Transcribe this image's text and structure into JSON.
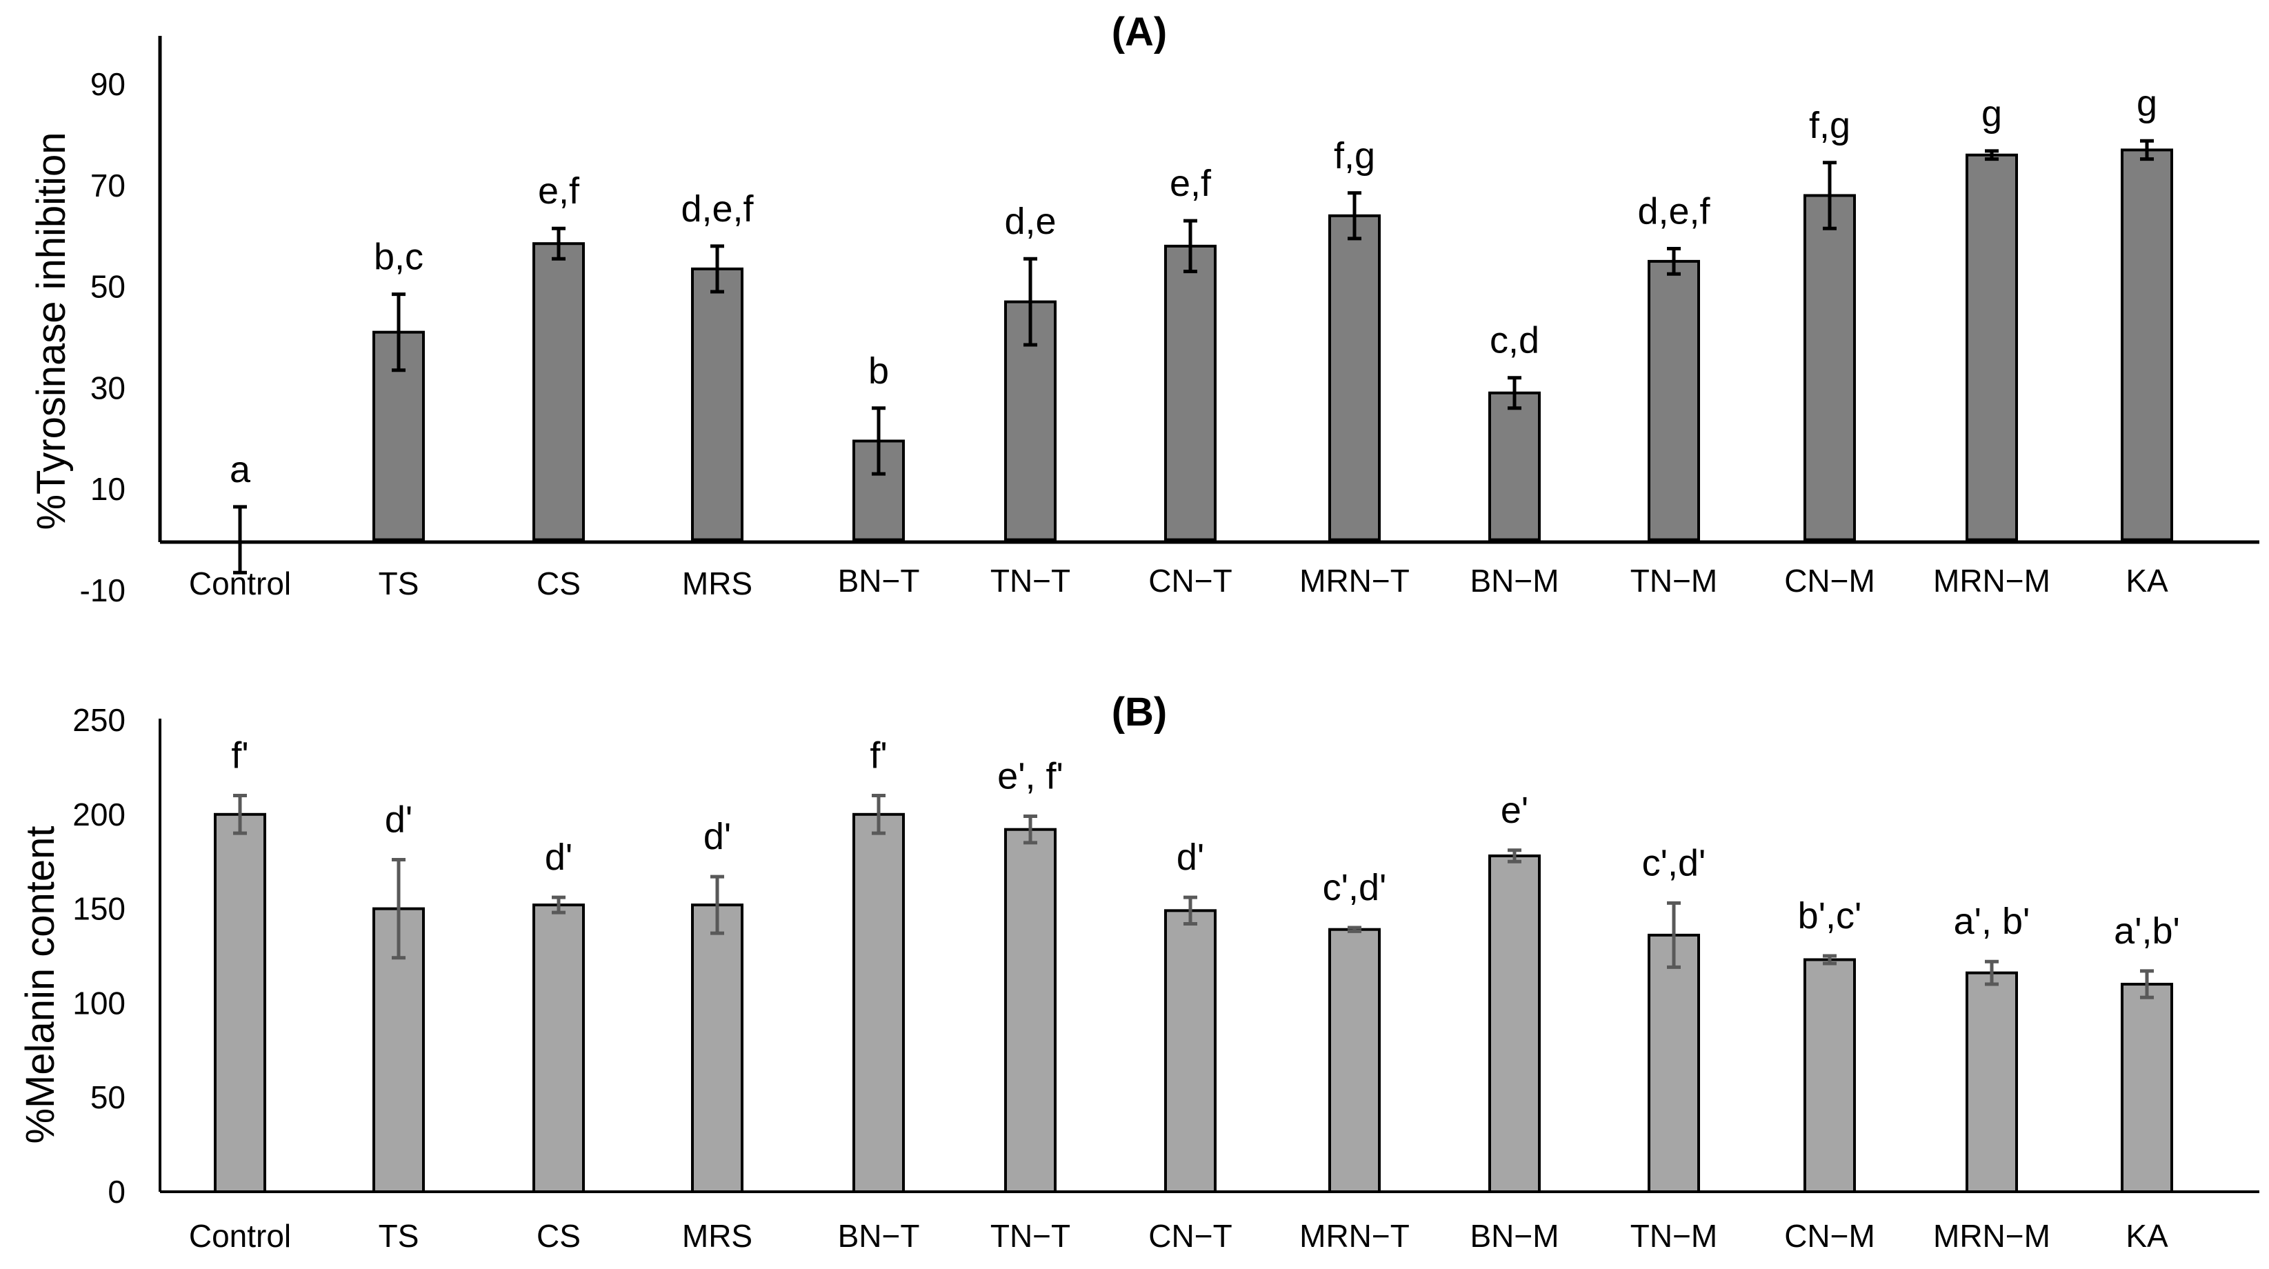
{
  "chart_data": [
    {
      "panel": "A",
      "type": "bar",
      "title": "(A)",
      "xlabel": "",
      "ylabel": "%Tyrosinase inhibition",
      "ylim": [
        -10,
        100
      ],
      "yticks": [
        -10,
        10,
        30,
        50,
        70,
        90
      ],
      "grid": false,
      "categories": [
        "Control",
        "TS",
        "CS",
        "MRS",
        "BN−T",
        "TN−T",
        "CN−T",
        "MRN−T",
        "BN−M",
        "TN−M",
        "CN−M",
        "MRN−M",
        "KA"
      ],
      "values": [
        0,
        41,
        58.5,
        53.5,
        19.5,
        47,
        58,
        64,
        29,
        55,
        68,
        76,
        77
      ],
      "errors": [
        6.5,
        7.5,
        3,
        4.5,
        6.5,
        8.5,
        5,
        4.5,
        3,
        2.5,
        6.5,
        0.8,
        1.8
      ],
      "significance": [
        "a",
        "b,c",
        "e,f",
        "d,e,f",
        "b",
        "d,e",
        "e,f",
        "f,g",
        "c,d",
        "d,e,f",
        "f,g",
        "g",
        "g"
      ],
      "bar_color": "#7f7f7f",
      "error_color": "#000000"
    },
    {
      "panel": "B",
      "type": "bar",
      "title": "(B)",
      "xlabel": "",
      "ylabel": "%Melanin content",
      "ylim": [
        0,
        250
      ],
      "yticks": [
        0,
        50,
        100,
        150,
        200,
        250
      ],
      "grid": false,
      "categories": [
        "Control",
        "TS",
        "CS",
        "MRS",
        "BN−T",
        "TN−T",
        "CN−T",
        "MRN−T",
        "BN−M",
        "TN−M",
        "CN−M",
        "MRN−M",
        "KA"
      ],
      "values": [
        200,
        150,
        152,
        152,
        200,
        192,
        149,
        139,
        178,
        136,
        123,
        116,
        110
      ],
      "errors": [
        10,
        26,
        4,
        15,
        10,
        7,
        7,
        1,
        3,
        17,
        2,
        6,
        7
      ],
      "significance": [
        "f'",
        "d'",
        "d'",
        "d'",
        "f'",
        "e', f'",
        "d'",
        "c',d'",
        "e'",
        "c',d'",
        "b',c'",
        "a', b'",
        "a',b'"
      ],
      "bar_color": "#a6a6a6",
      "error_color": "#595959"
    }
  ]
}
